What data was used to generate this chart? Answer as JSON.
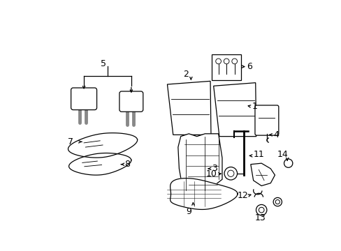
{
  "background_color": "#ffffff",
  "line_color": "#000000",
  "fig_width": 4.89,
  "fig_height": 3.6,
  "dpi": 100,
  "gray_color": "#888888"
}
